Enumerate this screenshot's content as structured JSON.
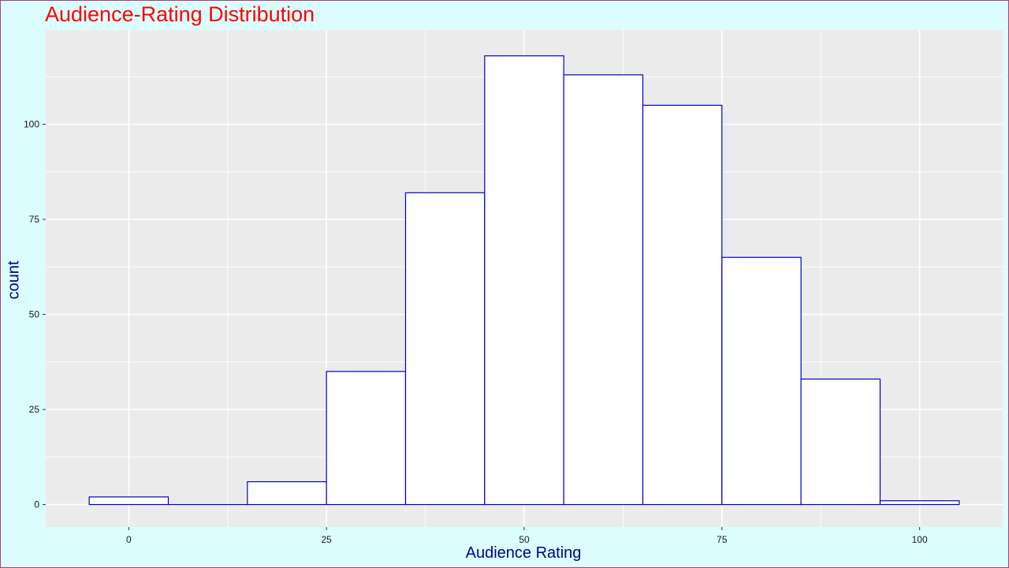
{
  "chart_data": {
    "type": "histogram",
    "title": "Audience-Rating Distribution",
    "xlabel": "Audience Rating",
    "ylabel": "count",
    "bin_width": 10,
    "bins": [
      {
        "start": -5,
        "end": 5,
        "count": 2
      },
      {
        "start": 5,
        "end": 15,
        "count": 0
      },
      {
        "start": 15,
        "end": 25,
        "count": 6
      },
      {
        "start": 25,
        "end": 35,
        "count": 35
      },
      {
        "start": 35,
        "end": 45,
        "count": 82
      },
      {
        "start": 45,
        "end": 55,
        "count": 118
      },
      {
        "start": 55,
        "end": 65,
        "count": 113
      },
      {
        "start": 65,
        "end": 75,
        "count": 105
      },
      {
        "start": 75,
        "end": 85,
        "count": 65
      },
      {
        "start": 85,
        "end": 95,
        "count": 33
      },
      {
        "start": 95,
        "end": 105,
        "count": 1
      }
    ],
    "x_ticks": [
      0,
      25,
      50,
      75,
      100
    ],
    "y_ticks": [
      0,
      25,
      50,
      75,
      100
    ],
    "xlim": [
      -10.5,
      110.5
    ],
    "ylim": [
      -5.9,
      124.8
    ],
    "grid": true,
    "colors": {
      "bar_fill": "#ffffff",
      "bar_outline": "#0000cd",
      "panel_background": "#ebebeb",
      "plot_background": "#dcfdfd",
      "title_color": "#ff0000",
      "axis_title_color": "#00008b"
    }
  }
}
